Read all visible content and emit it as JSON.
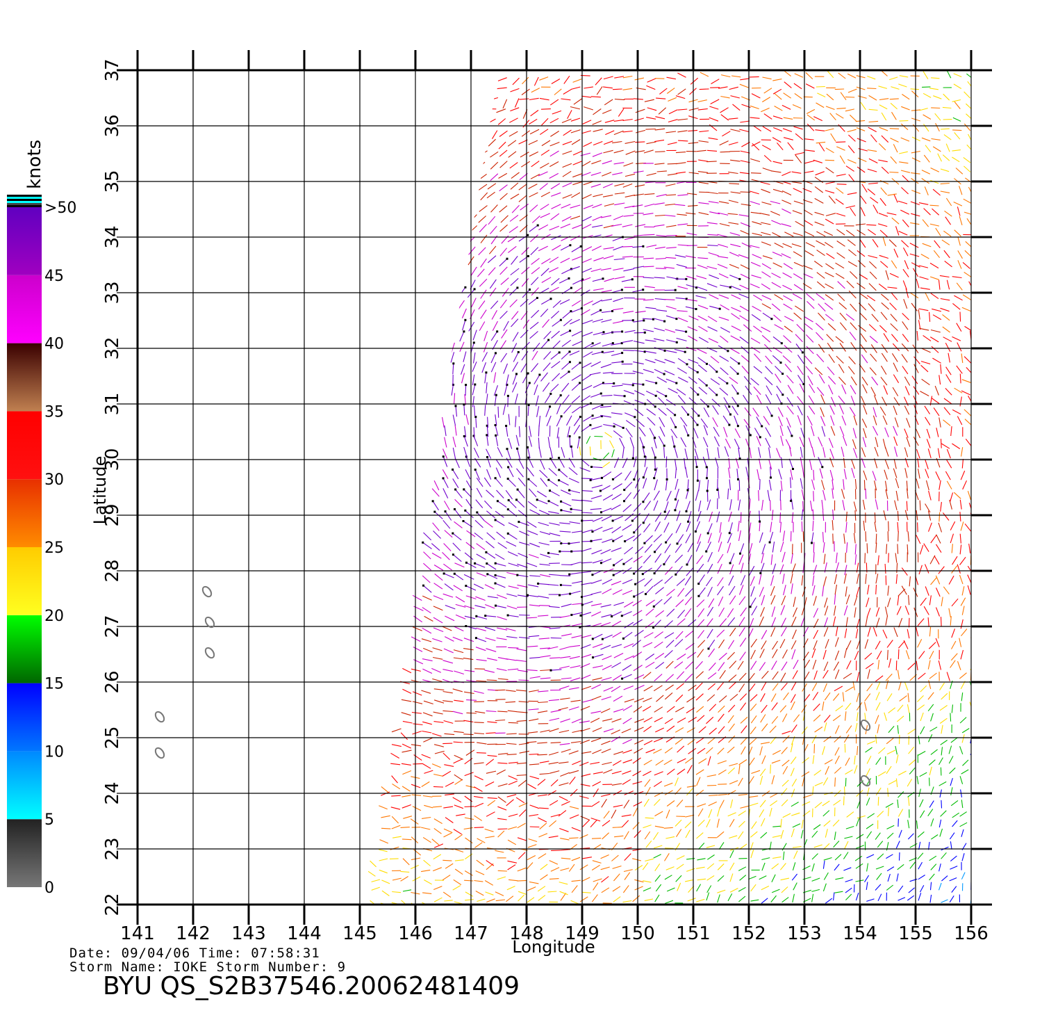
{
  "map": {
    "lon_range": [
      141,
      156
    ],
    "lat_range": [
      22,
      37
    ],
    "lon_ticks": [
      "141",
      "142",
      "143",
      "144",
      "145",
      "146",
      "147",
      "148",
      "149",
      "150",
      "151",
      "152",
      "153",
      "154",
      "155",
      "156"
    ],
    "lat_ticks": [
      "22",
      "23",
      "24",
      "25",
      "26",
      "27",
      "28",
      "29",
      "30",
      "31",
      "32",
      "33",
      "34",
      "35",
      "36",
      "37"
    ],
    "xlabel": "Longitude",
    "ylabel": "Latitude",
    "grid": true,
    "storm_center": {
      "lon": 149.3,
      "lat": 30.2
    },
    "swath_edge_left": [
      [
        147.5,
        37
      ],
      [
        145.0,
        22
      ]
    ],
    "islands": [
      {
        "lon": 142.15,
        "lat": 27.7
      },
      {
        "lon": 142.2,
        "lat": 27.15
      },
      {
        "lon": 142.2,
        "lat": 26.6
      },
      {
        "lon": 141.3,
        "lat": 25.45
      },
      {
        "lon": 141.3,
        "lat": 24.8
      },
      {
        "lon": 154.0,
        "lat": 25.3
      },
      {
        "lon": 154.0,
        "lat": 24.3
      }
    ]
  },
  "colorbar": {
    "unit": "knots",
    "labels": [
      {
        "value": 0,
        "text": "0"
      },
      {
        "value": 5,
        "text": "5"
      },
      {
        "value": 10,
        "text": "10"
      },
      {
        "value": 15,
        "text": "15"
      },
      {
        "value": 20,
        "text": "20"
      },
      {
        "value": 25,
        "text": "25"
      },
      {
        "value": 30,
        "text": "30"
      },
      {
        "value": 35,
        "text": "35"
      },
      {
        "value": 40,
        "text": "40"
      },
      {
        "value": 45,
        "text": "45"
      },
      {
        "value": 50,
        "text": ">50"
      }
    ],
    "segments": [
      {
        "from": 0,
        "to": 5,
        "colors": [
          "#777777",
          "#222222"
        ]
      },
      {
        "from": 5,
        "to": 10,
        "colors": [
          "#00ffff",
          "#0088ff"
        ]
      },
      {
        "from": 10,
        "to": 15,
        "colors": [
          "#0077ff",
          "#0000ff"
        ]
      },
      {
        "from": 15,
        "to": 20,
        "colors": [
          "#006600",
          "#00ff00"
        ]
      },
      {
        "from": 20,
        "to": 25,
        "colors": [
          "#ffff20",
          "#ffcc00"
        ]
      },
      {
        "from": 25,
        "to": 30,
        "colors": [
          "#ff8c00",
          "#e83000"
        ]
      },
      {
        "from": 30,
        "to": 35,
        "colors": [
          "#ff1010",
          "#ff0000"
        ]
      },
      {
        "from": 35,
        "to": 40,
        "colors": [
          "#c08050",
          "#3a0000"
        ]
      },
      {
        "from": 40,
        "to": 45,
        "colors": [
          "#ff00ff",
          "#cc00cc"
        ]
      },
      {
        "from": 45,
        "to": 50,
        "colors": [
          "#a000c0",
          "#6000c0"
        ]
      }
    ],
    "top_stripes": [
      "#000000",
      "#00ffff",
      "#000000",
      "#00ffff",
      "#444444",
      "#000000"
    ]
  },
  "speed_colors": [
    {
      "max": 5,
      "color": "#333333"
    },
    {
      "max": 10,
      "color": "#0099ff"
    },
    {
      "max": 15,
      "color": "#0000ff"
    },
    {
      "max": 20,
      "color": "#00bb00"
    },
    {
      "max": 25,
      "color": "#ffdd00"
    },
    {
      "max": 30,
      "color": "#ff7700"
    },
    {
      "max": 35,
      "color": "#ff0000"
    },
    {
      "max": 40,
      "color": "#cc2200"
    },
    {
      "max": 45,
      "color": "#cc00cc"
    },
    {
      "max": 999,
      "color": "#7000cc"
    }
  ],
  "footer": {
    "date_line": "Date: 09/04/06   Time: 07:58:31",
    "storm_line": "Storm  Name: IOKE   Storm  Number: 9",
    "product_id": "BYU  QS_S2B37546.20062481409"
  }
}
